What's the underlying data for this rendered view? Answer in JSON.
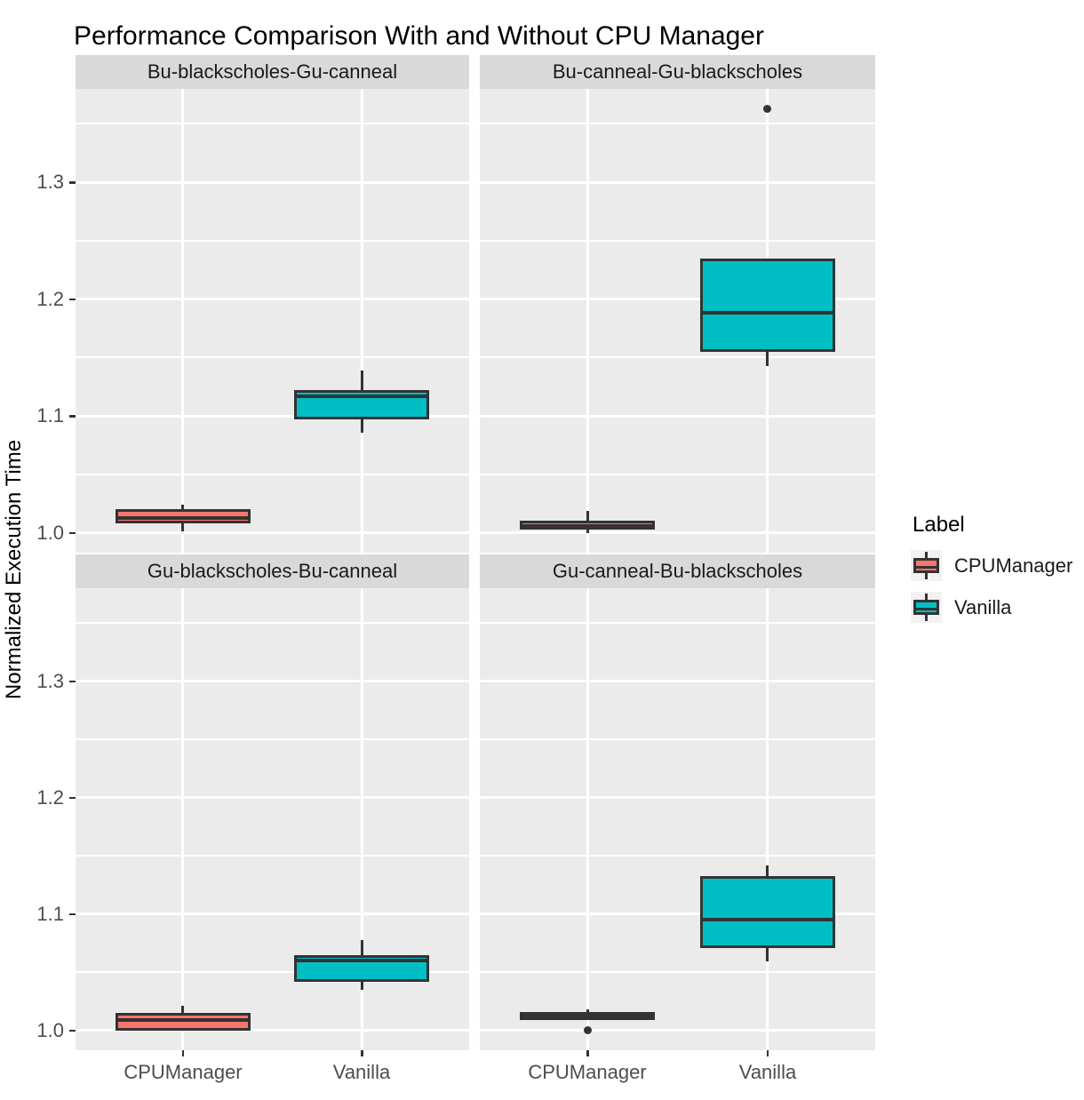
{
  "title": "Performance Comparison With and Without CPU Manager",
  "chart_data": {
    "type": "boxplot",
    "layout": "2x2-facet-grid",
    "ylabel": "Normalized Execution Time",
    "y_ticks": [
      "1.0",
      "1.1",
      "1.2",
      "1.3"
    ],
    "y_tick_values": [
      1.0,
      1.1,
      1.2,
      1.3
    ],
    "ylim": [
      0.983,
      1.38
    ],
    "grid": {
      "major": [
        1.0,
        1.1,
        1.2,
        1.3
      ],
      "minor": [
        1.05,
        1.15,
        1.25,
        1.35
      ],
      "gridlines_on": true
    },
    "categories": [
      "CPUManager",
      "Vanilla"
    ],
    "legend": {
      "title": "Label",
      "position": "right",
      "entries": [
        {
          "label": "CPUManager",
          "color": "#F8766D"
        },
        {
          "label": "Vanilla",
          "color": "#00BFC4"
        }
      ]
    },
    "colors": {
      "panel_bg": "#EBEBEB",
      "strip_bg": "#D9D9D9",
      "gridline": "#FFFFFF",
      "box_edge": "#333333",
      "outlier": "#333333",
      "axis_text": "#4D4D4D",
      "legend_key_bg": "#F2F2F2",
      "cpumanager_fill": "#F8766D",
      "vanilla_fill": "#00BFC4"
    },
    "facets": [
      {
        "label": "Bu-blackscholes-Gu-canneal",
        "boxes": [
          {
            "group": "CPUManager",
            "min": 1.001,
            "q1": 1.008,
            "median": 1.013,
            "q3": 1.02,
            "max": 1.024,
            "outliers": []
          },
          {
            "group": "Vanilla",
            "min": 1.086,
            "q1": 1.097,
            "median": 1.117,
            "q3": 1.122,
            "max": 1.139,
            "outliers": []
          }
        ]
      },
      {
        "label": "Bu-canneal-Gu-blackscholes",
        "boxes": [
          {
            "group": "CPUManager",
            "min": 1.0,
            "q1": 1.003,
            "median": 1.006,
            "q3": 1.01,
            "max": 1.019,
            "outliers": []
          },
          {
            "group": "Vanilla",
            "min": 1.143,
            "q1": 1.155,
            "median": 1.188,
            "q3": 1.235,
            "max": 1.235,
            "outliers": [
              1.363
            ]
          }
        ]
      },
      {
        "label": "Gu-blackscholes-Bu-canneal",
        "boxes": [
          {
            "group": "CPUManager",
            "min": 1.0,
            "q1": 1.0,
            "median": 1.009,
            "q3": 1.015,
            "max": 1.021,
            "outliers": []
          },
          {
            "group": "Vanilla",
            "min": 1.035,
            "q1": 1.042,
            "median": 1.06,
            "q3": 1.065,
            "max": 1.078,
            "outliers": []
          }
        ]
      },
      {
        "label": "Gu-canneal-Bu-blackscholes",
        "boxes": [
          {
            "group": "CPUManager",
            "min": 1.009,
            "q1": 1.009,
            "median": 1.012,
            "q3": 1.016,
            "max": 1.018,
            "outliers": [
              1.0
            ]
          },
          {
            "group": "Vanilla",
            "min": 1.059,
            "q1": 1.071,
            "median": 1.095,
            "q3": 1.133,
            "max": 1.142,
            "outliers": []
          }
        ]
      }
    ]
  }
}
